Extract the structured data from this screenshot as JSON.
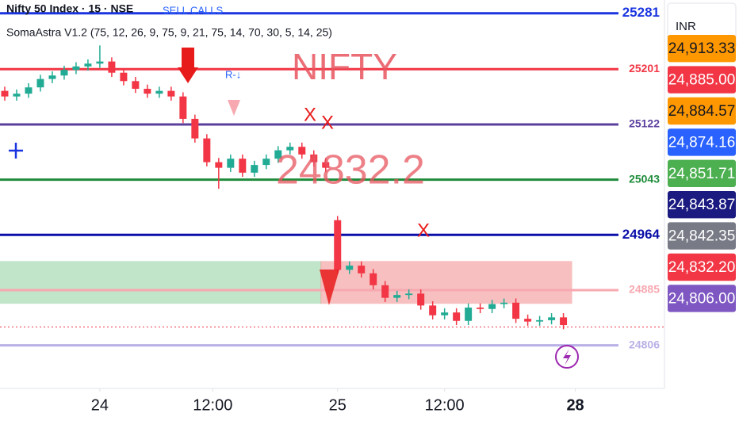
{
  "chart_data": {
    "type": "candlestick",
    "title": "Nifty 50 Index · 15 · NSE",
    "subtitle": "SomaAstra V1.2 (75, 12, 26, 9, 75, 9, 21, 75, 14, 70, 30, 5, 14, 25)",
    "currency": "INR",
    "annotations": [
      "SELL CALLS",
      "NIFTY",
      "24832.2",
      "R-↓",
      "X",
      "X",
      "X"
    ],
    "x": [
      0,
      1,
      2,
      3,
      4,
      5,
      6,
      7,
      8,
      9,
      10,
      11,
      12,
      13,
      14,
      15,
      16,
      17,
      18,
      19,
      20,
      21,
      22,
      23,
      24,
      25,
      26,
      27,
      28,
      29,
      30,
      31,
      32,
      33,
      34,
      35,
      36,
      37,
      38,
      39,
      40,
      41,
      42,
      43,
      44,
      45,
      46,
      47
    ],
    "open": [
      25170,
      25162,
      25166,
      25175,
      25187,
      25192,
      25200,
      25205,
      25209,
      25212,
      25196,
      25184,
      25173,
      25166,
      25170,
      25162,
      25130,
      25102,
      25068,
      25060,
      25073,
      25053,
      25064,
      25073,
      25085,
      25090,
      25079,
      25068,
      24985,
      24914,
      24920,
      24909,
      24892,
      24874,
      24878,
      24880,
      24863,
      24849,
      24853,
      24841,
      24860,
      24858,
      24865,
      24867,
      24844,
      24840,
      24842,
      24846
    ],
    "high": [
      25176,
      25172,
      25181,
      25193,
      25198,
      25206,
      25211,
      25215,
      25235,
      25218,
      25202,
      25190,
      25179,
      25176,
      25176,
      25168,
      25136,
      25108,
      25074,
      25079,
      25079,
      25070,
      25079,
      25091,
      25096,
      25096,
      25085,
      25074,
      24991,
      24926,
      24926,
      24915,
      24898,
      24884,
      24886,
      24886,
      24869,
      24859,
      24859,
      24866,
      24866,
      24871,
      24873,
      24873,
      24850,
      24848,
      24852,
      24852
    ],
    "low": [
      25156,
      25156,
      25160,
      25169,
      25181,
      25186,
      25194,
      25199,
      25203,
      25190,
      25178,
      25167,
      25160,
      25160,
      25156,
      25124,
      25096,
      25062,
      25030,
      25054,
      25047,
      25047,
      25058,
      25067,
      25079,
      25073,
      25062,
      25054,
      24908,
      24908,
      24903,
      24886,
      24868,
      24868,
      24872,
      24857,
      24843,
      24843,
      24835,
      24835,
      24852,
      24852,
      24859,
      24838,
      24834,
      24834,
      24836,
      24829
    ],
    "close": [
      25162,
      25166,
      25175,
      25187,
      25192,
      25200,
      25205,
      25209,
      25212,
      25196,
      25184,
      25173,
      25166,
      25170,
      25162,
      25130,
      25102,
      25068,
      25060,
      25073,
      25053,
      25064,
      25073,
      25085,
      25090,
      25079,
      25068,
      25060,
      24914,
      24920,
      24909,
      24892,
      24874,
      24878,
      24880,
      24863,
      24849,
      24853,
      24841,
      24860,
      24858,
      24865,
      24867,
      24844,
      24840,
      24842,
      24846,
      24835
    ],
    "up_color": "#22ab94",
    "down_color": "#f23645",
    "xlim": [
      -0.4,
      55.3
    ],
    "xticks": [
      {
        "value": 8,
        "label": "24"
      },
      {
        "value": 17.5,
        "label": "12:00"
      },
      {
        "value": 28,
        "label": "25"
      },
      {
        "value": 37,
        "label": "12:00"
      },
      {
        "value": 48,
        "label": "28"
      }
    ],
    "ylim": [
      24733,
      25300
    ],
    "yticks": [
      25281,
      25201,
      25122,
      25043,
      24964,
      24885,
      24806
    ],
    "ytick_colors": [
      "#1a35e0",
      "#f23645",
      "#5b3f9e",
      "#1e8c3a",
      "#0a0fa8",
      "#f7a8b0",
      "#b9b0e6"
    ],
    "zones": [
      {
        "color": "#8fd19e",
        "from": -0.4,
        "to": 26.6,
        "top": 24926,
        "bottom": 24866
      },
      {
        "color": "#f28b8b",
        "from": 26.6,
        "to": 47.7,
        "top": 24926,
        "bottom": 24866
      }
    ],
    "price_badges": [
      {
        "value": 24913.33,
        "label": "24,913.33",
        "color": "#ff9800"
      },
      {
        "value": 24885.0,
        "label": "24,885.00",
        "color": "#f23645"
      },
      {
        "value": 24884.57,
        "label": "24,884.57",
        "color": "#ff9800"
      },
      {
        "value": 24874.16,
        "label": "24,874.16",
        "color": "#2962ff"
      },
      {
        "value": 24851.71,
        "label": "24,851.71",
        "color": "#4caf50"
      },
      {
        "value": 24843.87,
        "label": "24,843.87",
        "color": "#1a1a80"
      },
      {
        "value": 24842.35,
        "label": "24,842.35",
        "color": "#787b86"
      },
      {
        "value": 24832.2,
        "label": "24,832.20",
        "color": "#f23645"
      },
      {
        "value": 24806.0,
        "label": "24,806.00",
        "color": "#7e57c2"
      }
    ]
  }
}
